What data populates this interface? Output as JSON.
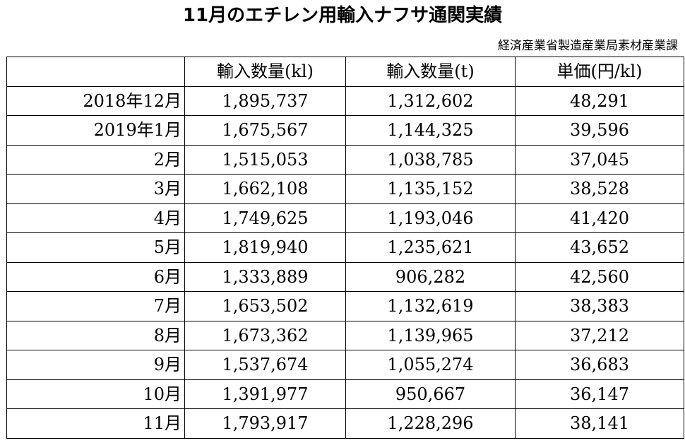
{
  "title": "11月のエチレン用輸入ナフサ通関実績",
  "source": "経済産業省製造産業局素材産業課",
  "table": {
    "headers": [
      "",
      "輸入数量(kl)",
      "輸入数量(t)",
      "単価(円/kl)"
    ],
    "rows": [
      [
        "2018年12月",
        "1,895,737",
        "1,312,602",
        "48,291"
      ],
      [
        "2019年1月",
        "1,675,567",
        "1,144,325",
        "39,596"
      ],
      [
        "2月",
        "1,515,053",
        "1,038,785",
        "37,045"
      ],
      [
        "3月",
        "1,662,108",
        "1,135,152",
        "38,528"
      ],
      [
        "4月",
        "1,749,625",
        "1,193,046",
        "41,420"
      ],
      [
        "5月",
        "1,819,940",
        "1,235,621",
        "43,652"
      ],
      [
        "6月",
        "1,333,889",
        "906,282",
        "42,560"
      ],
      [
        "7月",
        "1,653,502",
        "1,132,619",
        "38,383"
      ],
      [
        "8月",
        "1,673,362",
        "1,139,965",
        "37,212"
      ],
      [
        "9月",
        "1,537,674",
        "1,055,274",
        "36,683"
      ],
      [
        "10月",
        "1,391,977",
        "950,667",
        "36,147"
      ],
      [
        "11月",
        "1,793,917",
        "1,228,296",
        "38,141"
      ]
    ]
  }
}
